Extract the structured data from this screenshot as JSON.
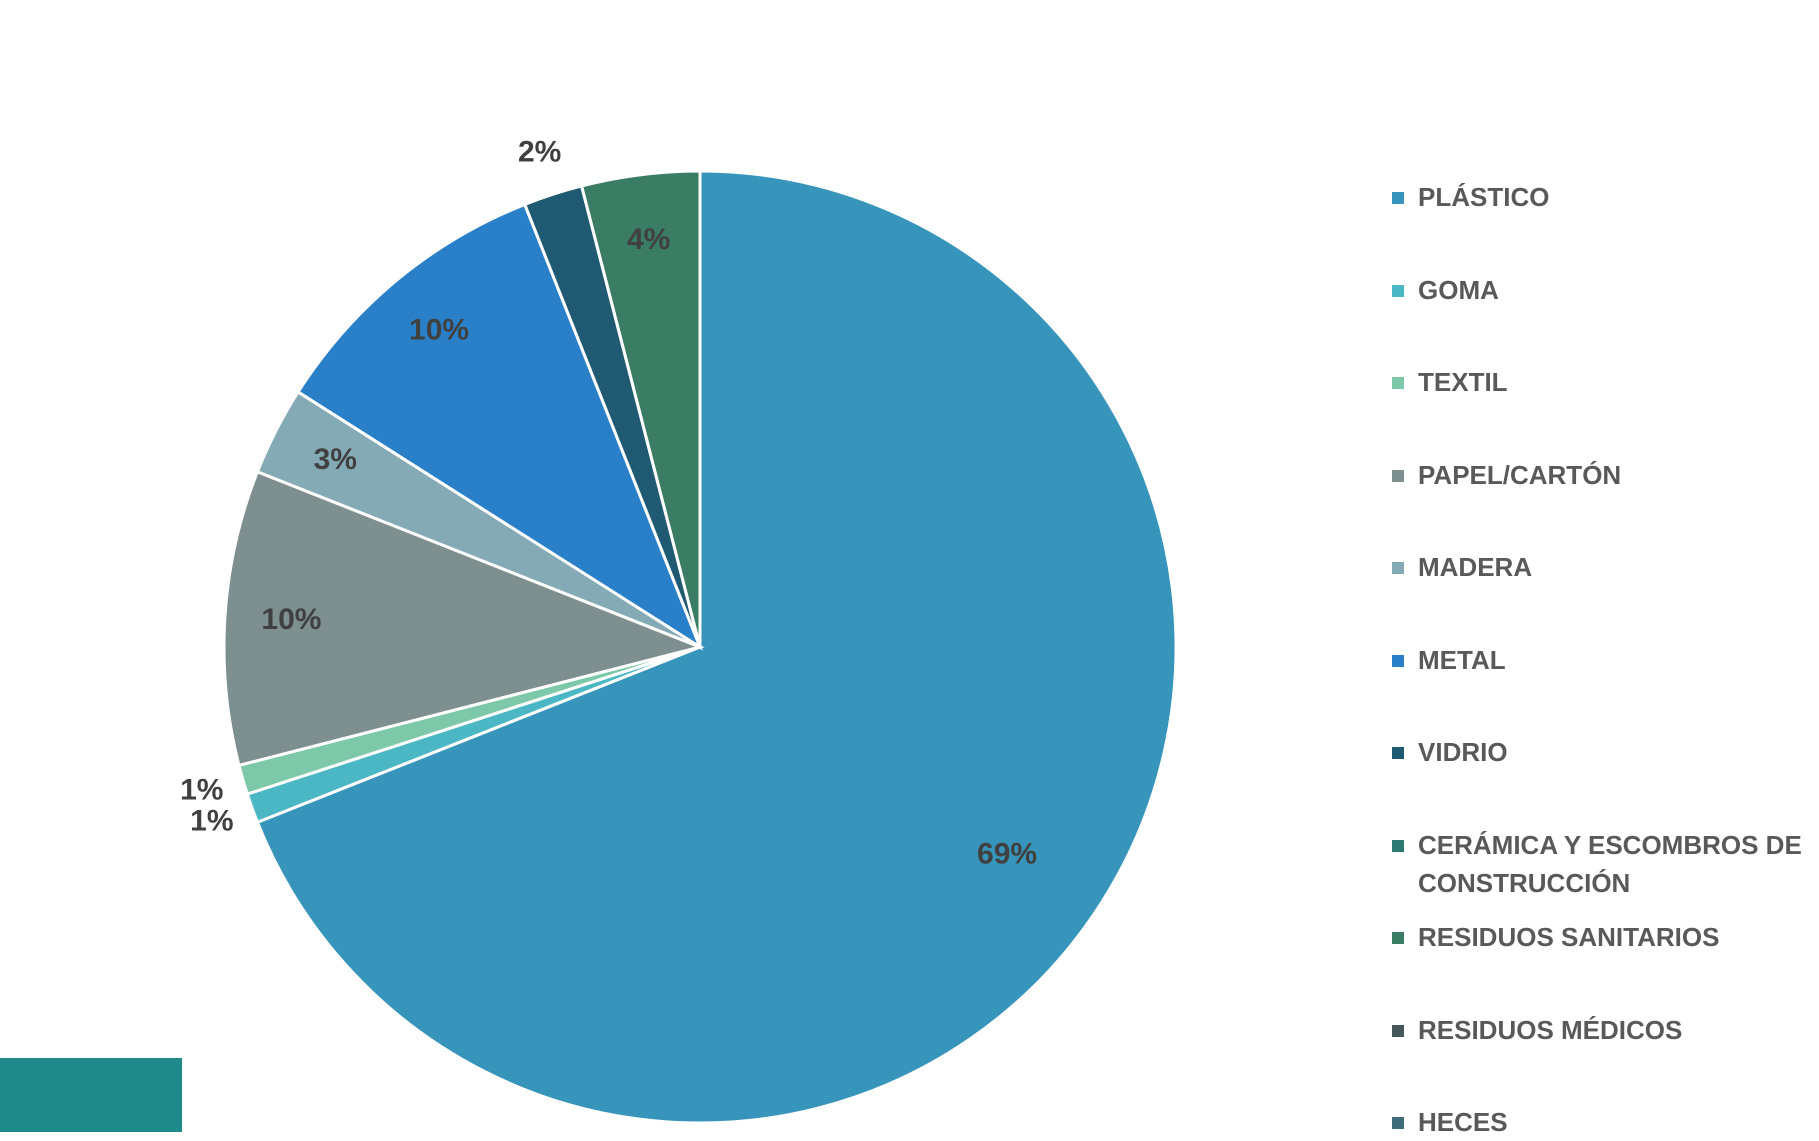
{
  "chart_data": {
    "type": "pie",
    "categories": [
      "PLÁSTICO",
      "GOMA",
      "TEXTIL",
      "PAPEL/CARTÓN",
      "MADERA",
      "METAL",
      "VIDRIO",
      "CERÁMICA Y ESCOMBROS DE CONSTRUCCIÓN",
      "RESIDUOS SANITARIOS",
      "RESIDUOS MÉDICOS",
      "HECES"
    ],
    "values": [
      69,
      1,
      1,
      10,
      3,
      10,
      2,
      0,
      4,
      0,
      0
    ],
    "value_labels": [
      "69%",
      "1%",
      "1%",
      "10%",
      "3%",
      "10%",
      "2%",
      null,
      "4%",
      null,
      null
    ],
    "colors": [
      "#3794bb",
      "#4bb7c5",
      "#7dc8a9",
      "#7e8f8f",
      "#84aab5",
      "#2a80c8",
      "#1f5a72",
      "#2d7a74",
      "#3a7c64",
      "#44585a",
      "#3f6e7a"
    ],
    "legend": "right"
  }
}
